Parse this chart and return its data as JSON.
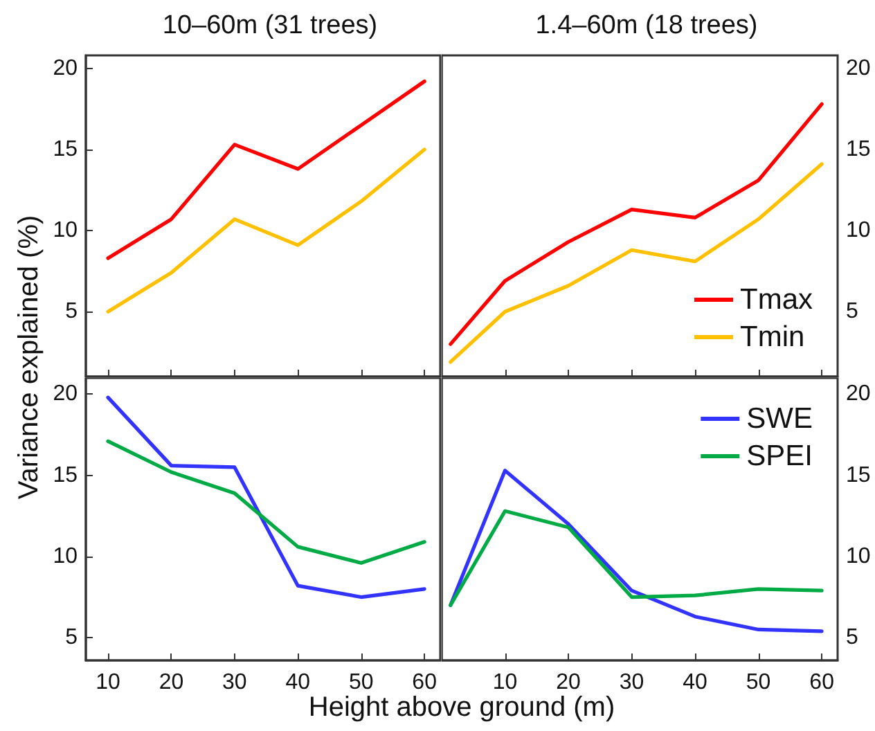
{
  "chart_data": [
    {
      "type": "line",
      "title": "10–60m (31 trees)",
      "ylabel": "Variance explained (%)",
      "x": [
        10,
        20,
        30,
        40,
        50,
        60
      ],
      "xlim": [
        6.5,
        62.5
      ],
      "xticks": [
        10,
        20,
        30,
        40,
        50,
        60
      ],
      "ylim": [
        1,
        20.8
      ],
      "yticks": [
        5,
        10,
        15,
        20
      ],
      "tick_labels": "y",
      "grid": false,
      "legend": false,
      "series": [
        {
          "color": "#ff0000",
          "values": [
            8.3,
            10.7,
            15.3,
            13.8,
            16.5,
            19.2
          ]
        },
        {
          "color": "#ffc000",
          "values": [
            5.0,
            7.4,
            10.7,
            9.1,
            11.8,
            15.0
          ]
        }
      ]
    },
    {
      "type": "line",
      "title": "1.4–60m (18 trees)",
      "x": [
        1.4,
        10,
        20,
        30,
        40,
        50,
        60
      ],
      "xlim": [
        0,
        62.5
      ],
      "xticks": [
        10,
        20,
        30,
        40,
        50,
        60
      ],
      "ylim": [
        1,
        20.8
      ],
      "yticks": [
        5,
        10,
        15,
        20
      ],
      "tick_labels": "y",
      "grid": false,
      "legend": "bottom right",
      "series": [
        {
          "name": "Tmax",
          "color": "#ff0000",
          "values": [
            3.0,
            6.9,
            9.3,
            11.3,
            10.8,
            13.1,
            17.8
          ]
        },
        {
          "name": "Tmin",
          "color": "#ffc000",
          "values": [
            1.9,
            5.0,
            6.6,
            8.8,
            8.1,
            10.7,
            14.1
          ]
        }
      ]
    },
    {
      "type": "line",
      "xlabel": "Height above ground (m)",
      "x": [
        10,
        20,
        30,
        40,
        50,
        60
      ],
      "xlim": [
        6.5,
        62.5
      ],
      "xticks": [
        10,
        20,
        30,
        40,
        50,
        60
      ],
      "ylim": [
        3.6,
        21
      ],
      "yticks": [
        5,
        10,
        15,
        20
      ],
      "grid": false,
      "legend": false,
      "series": [
        {
          "color": "#3333ff",
          "values": [
            19.8,
            15.6,
            15.5,
            8.2,
            7.5,
            8.0
          ]
        },
        {
          "color": "#00aa44",
          "values": [
            17.1,
            15.2,
            13.9,
            10.6,
            9.6,
            10.9
          ]
        }
      ]
    },
    {
      "type": "line",
      "x": [
        1.4,
        10,
        20,
        30,
        40,
        50,
        60
      ],
      "xlim": [
        0,
        62.5
      ],
      "xticks": [
        10,
        20,
        30,
        40,
        50,
        60
      ],
      "ylim": [
        3.6,
        21
      ],
      "yticks": [
        5,
        10,
        15,
        20
      ],
      "grid": false,
      "legend": "top right",
      "series": [
        {
          "name": "SWE",
          "color": "#3333ff",
          "values": [
            7.0,
            15.3,
            12.0,
            7.9,
            6.3,
            5.5,
            5.4
          ]
        },
        {
          "name": "SPEI",
          "color": "#00aa44",
          "values": [
            7.0,
            12.8,
            11.8,
            7.5,
            7.6,
            8.0,
            7.9
          ]
        }
      ]
    }
  ]
}
